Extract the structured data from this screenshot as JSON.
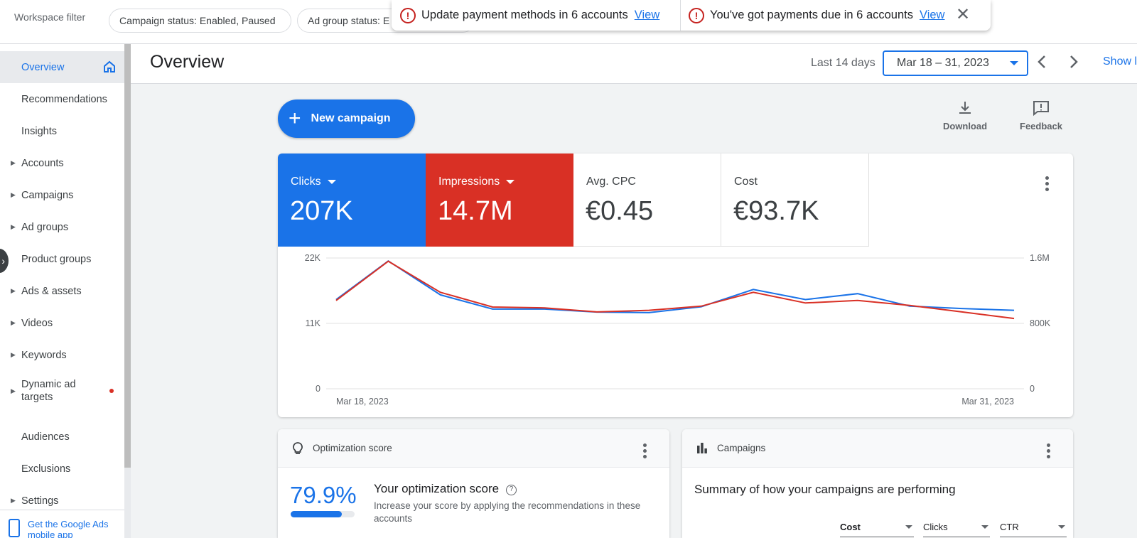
{
  "topbar": {
    "workspace_label": "Workspace filter",
    "chips": [
      "Campaign status: Enabled, Paused",
      "Ad group status: E"
    ]
  },
  "notifications": {
    "items": [
      {
        "text": "Update payment methods in 6 accounts",
        "link": "View"
      },
      {
        "text": "You've got payments due in 6 accounts",
        "link": "View"
      }
    ],
    "close_icon": "close-icon"
  },
  "sidebar": {
    "items": [
      {
        "label": "Overview",
        "active": true,
        "expandable": false,
        "icon": "home-icon"
      },
      {
        "label": "Recommendations",
        "expandable": false
      },
      {
        "label": "Insights",
        "expandable": false
      },
      {
        "label": "Accounts",
        "expandable": true
      },
      {
        "label": "Campaigns",
        "expandable": true
      },
      {
        "label": "Ad groups",
        "expandable": true
      },
      {
        "label": "Product groups",
        "expandable": false
      },
      {
        "label": "Ads & assets",
        "expandable": true
      },
      {
        "label": "Videos",
        "expandable": true
      },
      {
        "label": "Keywords",
        "expandable": true
      },
      {
        "label": "Dynamic ad targets",
        "expandable": true,
        "alert_dot": true
      },
      {
        "label": "Audiences",
        "expandable": false
      },
      {
        "label": "Exclusions",
        "expandable": false
      },
      {
        "label": "Settings",
        "expandable": true
      }
    ],
    "mobile_app": "Get the Google Ads mobile app"
  },
  "header": {
    "title": "Overview",
    "range_label": "Last 14 days",
    "date_range": "Mar 18 – 31, 2023",
    "show_label": "Show l"
  },
  "actions": {
    "new_campaign": "New campaign",
    "download": "Download",
    "feedback": "Feedback"
  },
  "metrics": [
    {
      "name": "Clicks",
      "value": "207K",
      "color": "#1a73e8",
      "selected": true
    },
    {
      "name": "Impressions",
      "value": "14.7M",
      "color": "#d93025",
      "selected": true
    },
    {
      "name": "Avg. CPC",
      "value": "€0.45",
      "selected": false
    },
    {
      "name": "Cost",
      "value": "€93.7K",
      "selected": false
    }
  ],
  "chart_data": {
    "type": "line",
    "x": [
      "Mar 18, 2023",
      "Mar 19, 2023",
      "Mar 20, 2023",
      "Mar 21, 2023",
      "Mar 22, 2023",
      "Mar 23, 2023",
      "Mar 24, 2023",
      "Mar 25, 2023",
      "Mar 26, 2023",
      "Mar 27, 2023",
      "Mar 28, 2023",
      "Mar 29, 2023",
      "Mar 30, 2023",
      "Mar 31, 2023"
    ],
    "x_tick_labels": [
      "Mar 18, 2023",
      "Mar 31, 2023"
    ],
    "series": [
      {
        "name": "Clicks",
        "axis": "left",
        "color": "#1a73e8",
        "values": [
          15000,
          21500,
          15800,
          13400,
          13400,
          12900,
          12800,
          13800,
          16700,
          15000,
          16000,
          13900,
          13500,
          13200
        ]
      },
      {
        "name": "Impressions",
        "axis": "right",
        "color": "#d93025",
        "values": [
          1080000,
          1560000,
          1180000,
          1000000,
          990000,
          940000,
          960000,
          1010000,
          1180000,
          1050000,
          1080000,
          1020000,
          940000,
          860000
        ]
      }
    ],
    "y_left": {
      "ticks": [
        "0",
        "11K",
        "22K"
      ],
      "ylim": [
        0,
        22000
      ]
    },
    "y_right": {
      "ticks": [
        "0",
        "800K",
        "1.6M"
      ],
      "ylim": [
        0,
        1600000
      ]
    },
    "grid": true
  },
  "optimization": {
    "title": "Optimization score",
    "score": "79.9%",
    "score_value": 0.799,
    "heading": "Your optimization score",
    "desc": "Increase your score by applying the recommendations in these accounts"
  },
  "campaigns": {
    "title": "Campaigns",
    "summary": "Summary of how your campaigns are performing",
    "selectors": [
      "Cost",
      "Clicks",
      "CTR"
    ]
  }
}
